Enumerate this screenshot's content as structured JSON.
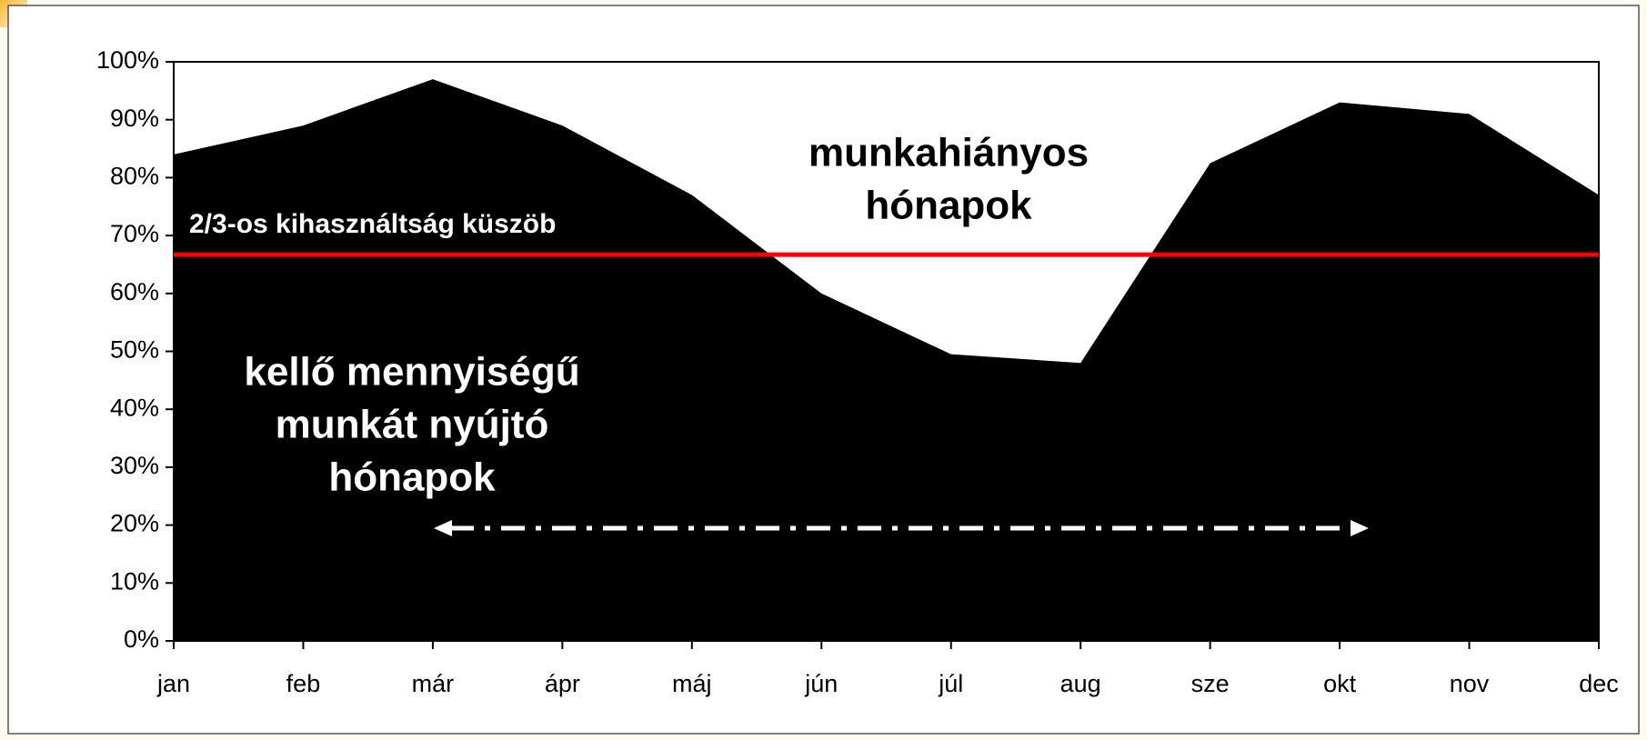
{
  "chart_data": {
    "type": "area",
    "categories": [
      "jan",
      "feb",
      "már",
      "ápr",
      "máj",
      "jún",
      "júl",
      "aug",
      "sze",
      "okt",
      "nov",
      "dec"
    ],
    "series": [
      {
        "color": "#000000",
        "values": [
          84,
          89,
          97,
          89,
          77,
          60,
          49.5,
          48,
          82.5,
          93,
          91,
          77
        ]
      }
    ],
    "ylim": [
      0,
      100
    ],
    "yticks": [
      {
        "value": 0,
        "label": "0%"
      },
      {
        "value": 10,
        "label": "10%"
      },
      {
        "value": 20,
        "label": "20%"
      },
      {
        "value": 30,
        "label": "30%"
      },
      {
        "value": 40,
        "label": "40%"
      },
      {
        "value": 50,
        "label": "50%"
      },
      {
        "value": 60,
        "label": "60%"
      },
      {
        "value": 70,
        "label": "70%"
      },
      {
        "value": 80,
        "label": "80%"
      },
      {
        "value": 90,
        "label": "90%"
      },
      {
        "value": 100,
        "label": "100%"
      }
    ],
    "threshold": {
      "label": "2/3-os kihasználtság küszöb",
      "value": 66.7,
      "color": "#ff0000"
    },
    "annotations": [
      [
        "munkahiányos",
        "hónapok"
      ],
      [
        "kellő mennyiségű",
        "munkát nyújtó",
        "hónapok"
      ]
    ]
  }
}
